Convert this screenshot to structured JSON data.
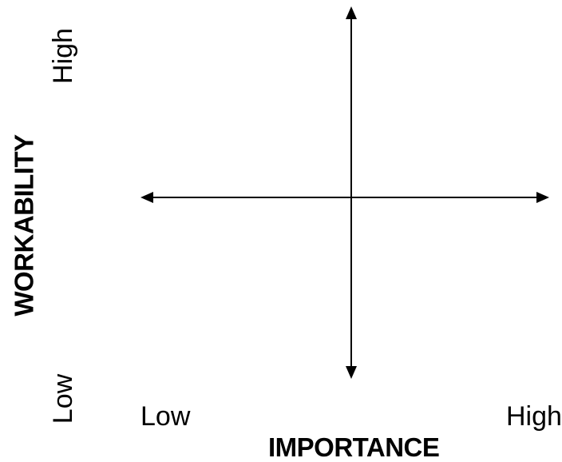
{
  "x_axis": {
    "title": "IMPORTANCE",
    "low_label": "Low",
    "high_label": "High"
  },
  "y_axis": {
    "title": "WORKABILITY",
    "low_label": "Low",
    "high_label": "High"
  },
  "colors": {
    "line": "#000000",
    "background": "#ffffff"
  }
}
